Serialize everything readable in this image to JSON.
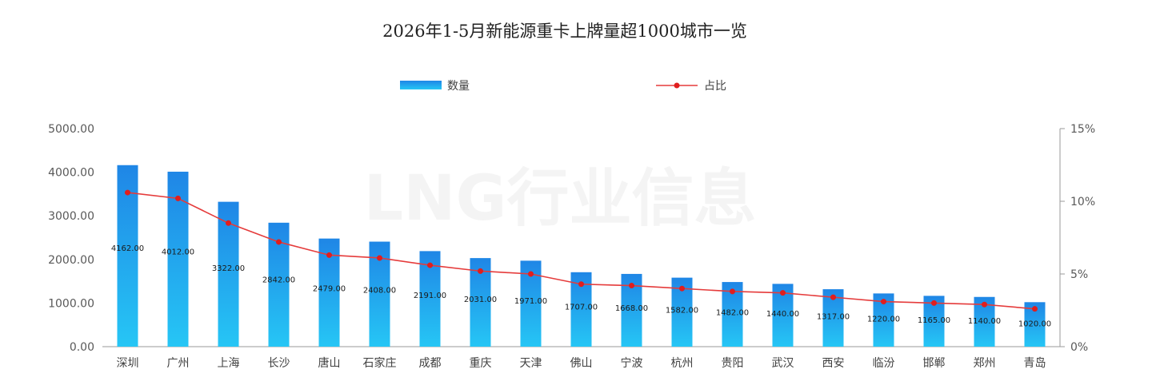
{
  "top_fragment": "",
  "chart_data": {
    "type": "bar",
    "title": "2026年1-5月新能源重卡上牌量超1000城市一览",
    "watermark": "LNG行业信息",
    "categories": [
      "深圳",
      "广州",
      "上海",
      "长沙",
      "唐山",
      "石家庄",
      "成都",
      "重庆",
      "天津",
      "佛山",
      "宁波",
      "杭州",
      "贵阳",
      "武汉",
      "西安",
      "临汾",
      "邯郸",
      "郑州",
      "青岛"
    ],
    "series": [
      {
        "name": "数量",
        "type": "bar",
        "axis": "left",
        "values": [
          4162,
          4012,
          3322,
          2842,
          2479,
          2408,
          2191,
          2031,
          1971,
          1707,
          1668,
          1582,
          1482,
          1440,
          1317,
          1220,
          1165,
          1140,
          1020
        ],
        "labels": [
          "4162.00",
          "4012.00",
          "3322.00",
          "2842.00",
          "2479.00",
          "2408.00",
          "2191.00",
          "2031.00",
          "1971.00",
          "1707.00",
          "1668.00",
          "1582.00",
          "1482.00",
          "1440.00",
          "1317.00",
          "1220.00",
          "1165.00",
          "1140.00",
          "1020.00"
        ],
        "color_top": "#1f86e6",
        "color_bottom": "#26c6f5"
      },
      {
        "name": "占比",
        "type": "line",
        "axis": "right",
        "values": [
          10.6,
          10.2,
          8.5,
          7.2,
          6.3,
          6.1,
          5.6,
          5.2,
          5.0,
          4.3,
          4.2,
          4.0,
          3.8,
          3.7,
          3.4,
          3.1,
          3.0,
          2.9,
          2.6
        ],
        "color": "#e53b3b",
        "marker_color": "#e01e1e"
      }
    ],
    "y_left": {
      "min": 0,
      "max": 5000,
      "ticks": [
        "0.00",
        "1000.00",
        "2000.00",
        "3000.00",
        "4000.00",
        "5000.00"
      ]
    },
    "y_right": {
      "min": 0,
      "max": 15,
      "ticks": [
        "0%",
        "5%",
        "10%",
        "15%"
      ]
    },
    "legend_position": "top-center",
    "grid": false
  }
}
